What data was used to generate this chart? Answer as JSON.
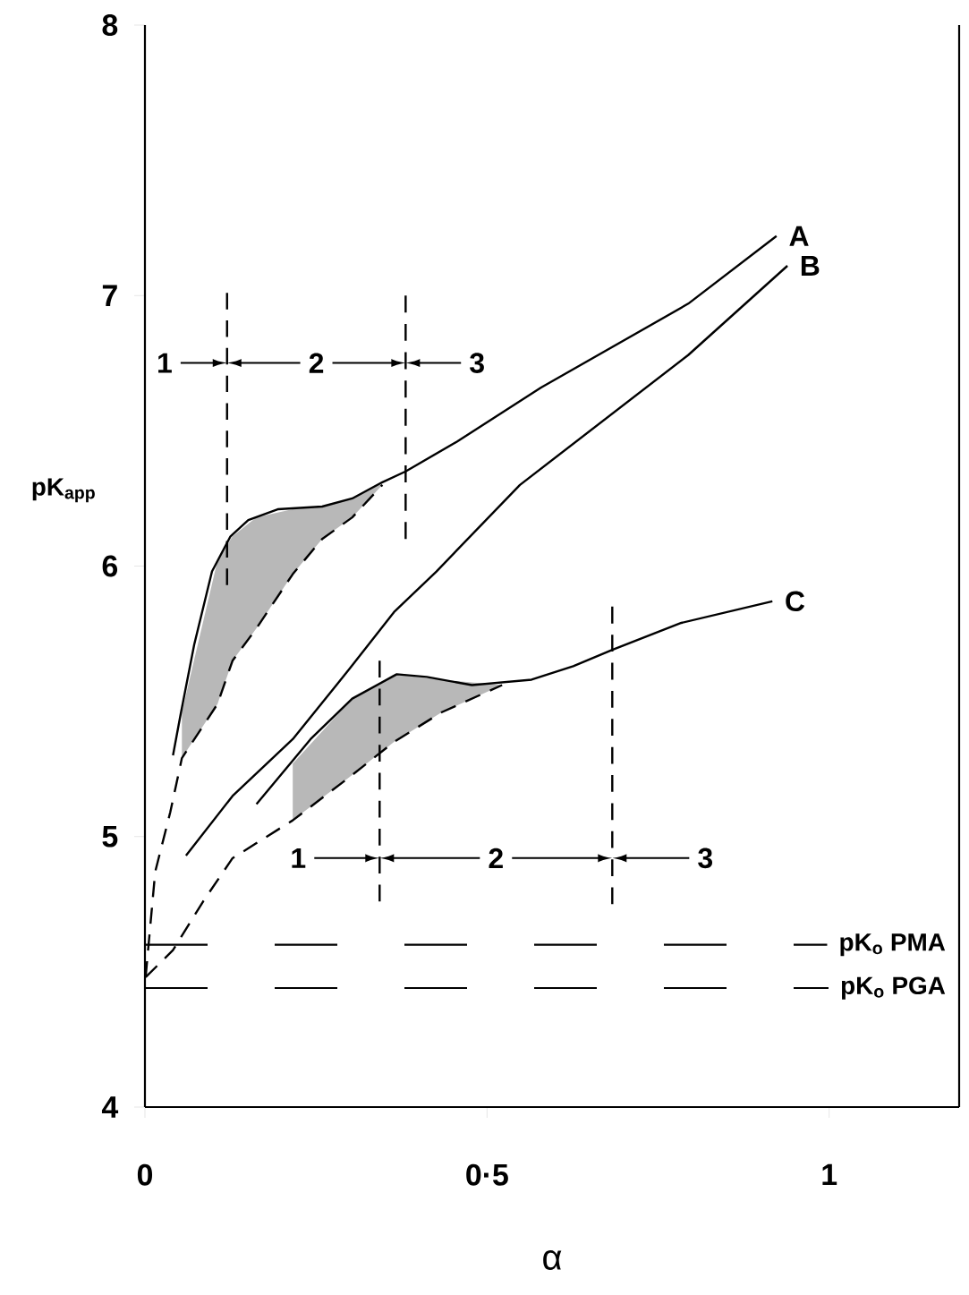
{
  "chart_data": {
    "type": "line",
    "xlabel": "α",
    "ylabel": "pK$_{app}$",
    "xlim": [
      0,
      1.19
    ],
    "ylim": [
      4,
      8
    ],
    "xticks": [
      0,
      {
        "value": 0.5,
        "label": "0·5"
      },
      1
    ],
    "yticks": [
      4,
      5,
      6,
      7,
      8
    ],
    "marker": "none",
    "grid": false,
    "series": [
      {
        "name": "A",
        "color": "#000000",
        "line_style": "solid",
        "x": [
          0.041,
          0.052,
          0.072,
          0.098,
          0.125,
          0.151,
          0.194,
          0.259,
          0.303,
          0.347,
          0.381,
          0.456,
          0.579,
          0.794,
          0.923
        ],
        "values": [
          5.3,
          5.45,
          5.71,
          5.98,
          6.11,
          6.17,
          6.21,
          6.22,
          6.25,
          6.31,
          6.35,
          6.46,
          6.66,
          6.97,
          7.22
        ]
      },
      {
        "color": "#000000",
        "line_style": "dashed",
        "x": [
          0.001,
          0.015,
          0.037,
          0.054,
          0.106,
          0.128,
          0.163,
          0.216,
          0.259,
          0.303,
          0.347
        ],
        "values": [
          4.48,
          4.87,
          5.09,
          5.29,
          5.49,
          5.65,
          5.77,
          5.97,
          6.1,
          6.18,
          6.3
        ],
        "lower": [
          null,
          null,
          null,
          5.29,
          5.49,
          5.65,
          5.77,
          5.97,
          6.1,
          6.18,
          6.3
        ],
        "upper": [
          null,
          null,
          null,
          5.46,
          6.02,
          6.11,
          6.18,
          6.21,
          6.22,
          6.25,
          6.31
        ]
      },
      {
        "name": "B",
        "color": "#000000",
        "line_style": "solid",
        "x": [
          0.06,
          0.128,
          0.216,
          0.299,
          0.364,
          0.426,
          0.548,
          0.794,
          0.939
        ],
        "values": [
          4.93,
          5.15,
          5.36,
          5.62,
          5.83,
          5.98,
          6.3,
          6.78,
          7.11
        ]
      },
      {
        "name": "C",
        "color": "#000000",
        "line_style": "solid",
        "x": [
          0.163,
          0.242,
          0.303,
          0.368,
          0.412,
          0.478,
          0.565,
          0.626,
          0.683,
          0.784,
          0.917
        ],
        "values": [
          5.12,
          5.36,
          5.51,
          5.6,
          5.59,
          5.56,
          5.58,
          5.63,
          5.69,
          5.79,
          5.87
        ]
      },
      {
        "color": "#000000",
        "line_style": "dashed",
        "x": [
          0.001,
          0.041,
          0.085,
          0.128,
          0.216,
          0.299,
          0.364,
          0.434,
          0.522
        ],
        "values": [
          4.48,
          4.58,
          4.76,
          4.92,
          5.06,
          5.22,
          5.35,
          5.46,
          5.56
        ],
        "lower": [
          null,
          null,
          null,
          null,
          5.06,
          5.22,
          5.35,
          5.46,
          5.56
        ],
        "upper": [
          null,
          null,
          null,
          null,
          5.27,
          5.5,
          5.6,
          5.58,
          5.56
        ]
      },
      {
        "color": "#000000",
        "line_style": "dashed",
        "x": [
          0.12,
          0.12
        ],
        "values": [
          7.01,
          5.93
        ]
      },
      {
        "color": "#000000",
        "line_style": "dashed",
        "x": [
          0.381,
          0.381
        ],
        "values": [
          7.0,
          6.1
        ]
      },
      {
        "color": "#000000",
        "line_style": "dashed",
        "x": [
          0.343,
          0.343
        ],
        "values": [
          5.65,
          4.76
        ]
      },
      {
        "color": "#000000",
        "line_style": "dashed",
        "x": [
          0.683,
          0.683
        ],
        "values": [
          5.85,
          4.75
        ]
      }
    ],
    "ref_lines": [
      {
        "axis": "y",
        "value": 4.6,
        "label": "pK$_{o}$ PMA",
        "line_style": "dashed",
        "color": "#000000"
      },
      {
        "axis": "y",
        "value": 4.44,
        "label": "pK$_{o}$ PGA",
        "line_style": "dashed",
        "color": "#000000"
      }
    ],
    "annotations": [
      "1",
      "2",
      "3",
      "1",
      "2",
      "3"
    ]
  }
}
